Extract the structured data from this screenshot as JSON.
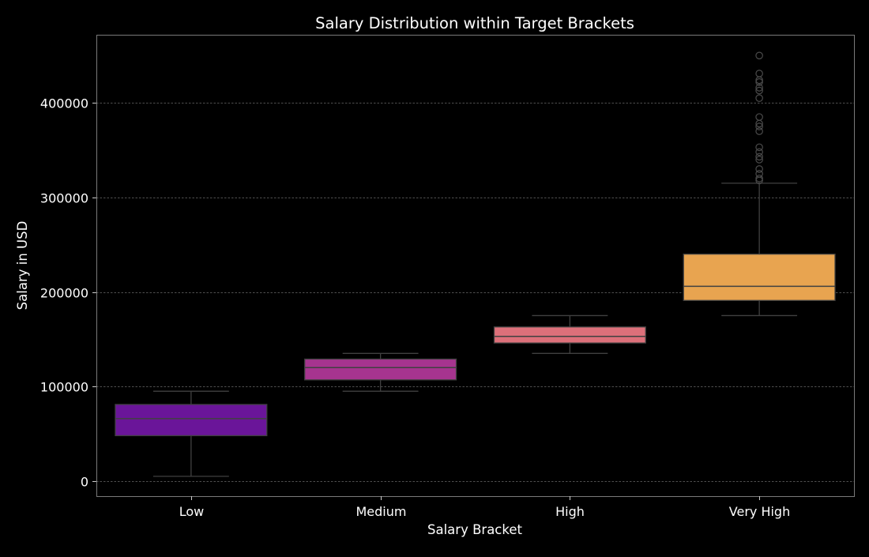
{
  "chart_data": {
    "type": "box",
    "title": "Salary Distribution within Target Brackets",
    "xlabel": "Salary Bracket",
    "ylabel": "Salary in USD",
    "ylim": [
      -16000,
      472000
    ],
    "yticks": [
      0,
      100000,
      200000,
      300000,
      400000
    ],
    "ytick_labels": [
      "0",
      "100000",
      "200000",
      "300000",
      "400000"
    ],
    "grid": "horizontal dashed",
    "background": "#000000",
    "categories": [
      "Low",
      "Medium",
      "High",
      "Very High"
    ],
    "boxes": [
      {
        "category": "Low",
        "color": "#6a1599",
        "whisker_low": 5000,
        "q1": 48000,
        "median": 66000,
        "q3": 81000,
        "whisker_high": 95000,
        "outliers": []
      },
      {
        "category": "Medium",
        "color": "#a6348f",
        "whisker_low": 95000,
        "q1": 107000,
        "median": 120000,
        "q3": 129000,
        "whisker_high": 135000,
        "outliers": []
      },
      {
        "category": "High",
        "color": "#dd707a",
        "whisker_low": 135000,
        "q1": 146000,
        "median": 153000,
        "q3": 163000,
        "whisker_high": 175000,
        "outliers": []
      },
      {
        "category": "Very High",
        "color": "#e8a450",
        "whisker_low": 175000,
        "q1": 191000,
        "median": 206000,
        "q3": 240000,
        "whisker_high": 315000,
        "outliers": [
          318000,
          320000,
          325000,
          330000,
          340000,
          343000,
          348000,
          353000,
          370000,
          375000,
          378000,
          385000,
          405000,
          413000,
          416000,
          422000,
          424000,
          431000,
          450000
        ]
      }
    ]
  }
}
